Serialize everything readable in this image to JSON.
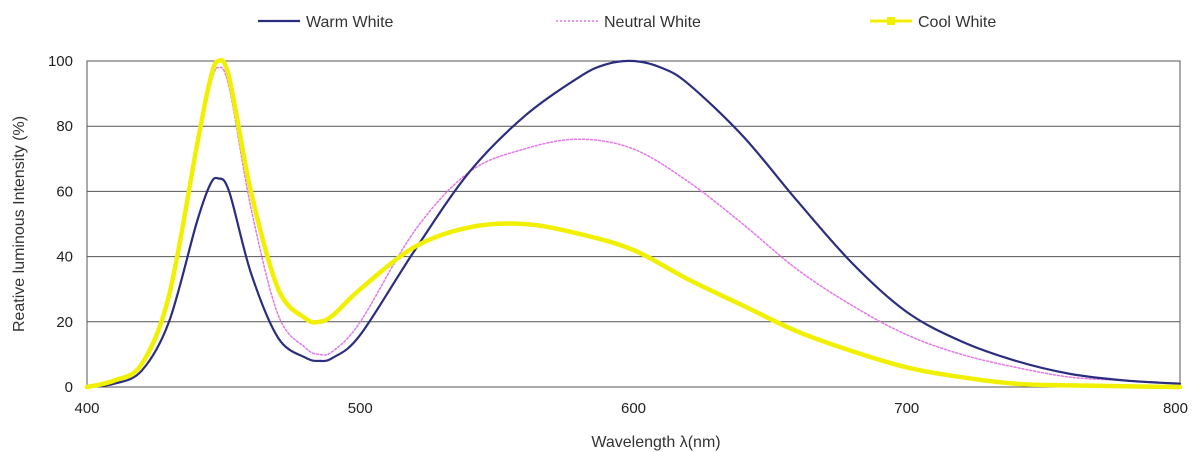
{
  "chart_data": {
    "type": "line",
    "title": "",
    "xlabel": "Wavelength  λ(nm)",
    "ylabel": "Reative luminous Intensity (%)",
    "xlim": [
      400,
      800
    ],
    "ylim": [
      0,
      100
    ],
    "xticks": [
      "400",
      "500",
      "600",
      "700",
      "800"
    ],
    "yticks": [
      "0",
      "20",
      "40",
      "60",
      "80",
      "100"
    ],
    "grid": true,
    "legend_position": "top",
    "series": [
      {
        "name": "Warm White",
        "color": "#2b2e7e",
        "style": "solid",
        "x": [
          400,
          410,
          420,
          430,
          440,
          445,
          448,
          452,
          460,
          470,
          480,
          485,
          490,
          500,
          520,
          540,
          560,
          580,
          590,
          600,
          610,
          620,
          640,
          660,
          680,
          700,
          720,
          740,
          760,
          780,
          800
        ],
        "y": [
          0,
          1,
          5,
          20,
          50,
          62,
          64,
          60,
          35,
          15,
          9,
          8,
          9,
          16,
          42,
          66,
          83,
          95,
          99,
          100,
          98,
          93,
          77,
          57,
          38,
          23,
          14,
          8,
          4,
          2,
          1
        ]
      },
      {
        "name": "Neutral White",
        "color": "#e377e6",
        "style": "dotted",
        "x": [
          400,
          410,
          420,
          430,
          440,
          445,
          448,
          452,
          460,
          470,
          480,
          485,
          490,
          500,
          520,
          540,
          560,
          580,
          600,
          620,
          640,
          660,
          680,
          700,
          720,
          740,
          760,
          780,
          800
        ],
        "y": [
          0,
          2,
          7,
          28,
          72,
          92,
          98,
          92,
          55,
          22,
          12,
          10,
          11,
          20,
          48,
          66,
          73,
          76,
          73,
          63,
          50,
          36,
          25,
          16,
          10,
          6,
          3,
          2,
          1
        ]
      },
      {
        "name": "Cool White",
        "color": "#f0f000",
        "style": "solid",
        "x": [
          400,
          410,
          420,
          430,
          440,
          445,
          448,
          452,
          460,
          470,
          480,
          485,
          490,
          500,
          520,
          540,
          560,
          580,
          600,
          620,
          640,
          660,
          680,
          700,
          720,
          740,
          760,
          780,
          800
        ],
        "y": [
          0,
          2,
          7,
          28,
          73,
          94,
          100,
          95,
          60,
          30,
          21,
          20,
          22,
          30,
          43,
          49,
          50,
          47,
          42,
          33,
          25,
          17,
          11,
          6,
          3,
          1,
          0.5,
          0.2,
          0
        ]
      }
    ]
  }
}
